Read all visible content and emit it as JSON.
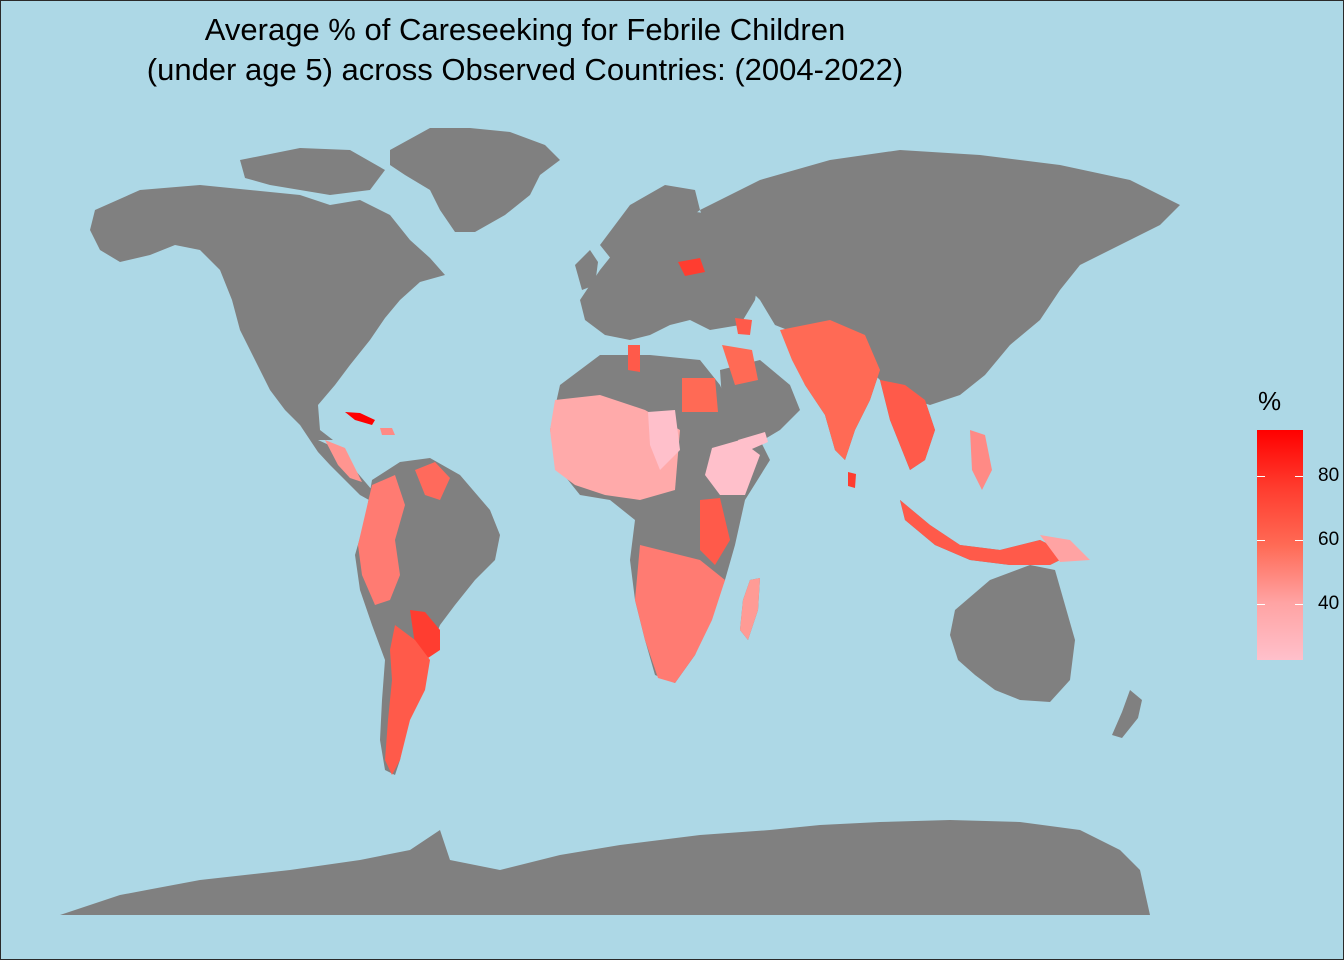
{
  "title": {
    "line1": "Average % of Careseeking for Febrile Children",
    "line2": "(under age 5) across Observed Countries: (2004-2022)"
  },
  "legend": {
    "title": "%",
    "ticks": [
      "40",
      "60",
      "80"
    ]
  },
  "colors": {
    "ocean": "#add8e6",
    "no_data": "#808080",
    "scale_low": "#ffc0cb",
    "scale_high": "#ff0000"
  }
}
